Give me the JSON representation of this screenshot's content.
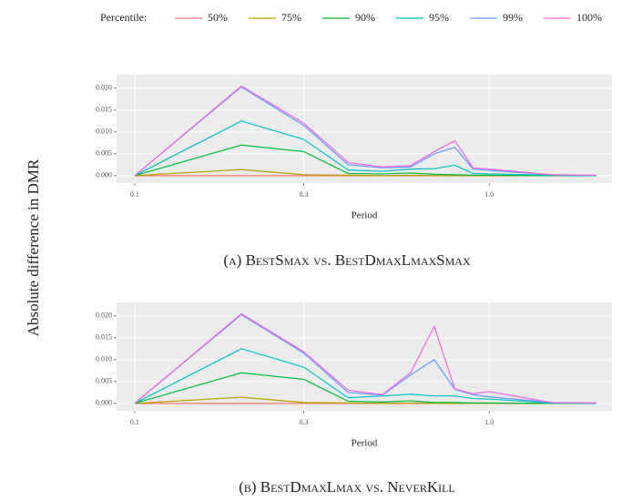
{
  "legend_title": "Percentile:",
  "y_label": "Absolute difference in DMR",
  "chart_data": [
    {
      "type": "line",
      "caption": "(a) BestSmax vs. BestDmaxLmaxSmax",
      "xlabel": "Period",
      "x": [
        0.1,
        0.2,
        0.3,
        0.4,
        0.5,
        0.6,
        0.7,
        0.8,
        0.9,
        1.0,
        1.5,
        2.0
      ],
      "xlog": true,
      "xlim": [
        0.0889,
        2.22
      ],
      "xticks": [
        0.1,
        0.3,
        {
          "value": 1,
          "label": "1.0"
        }
      ],
      "ylim": [
        -0.0017,
        0.0231
      ],
      "yticks": [
        {
          "value": 0,
          "label": "0.000"
        },
        0.005,
        {
          "value": 0.01,
          "label": "0.010"
        },
        0.015,
        {
          "value": 0.02,
          "label": "0.020"
        }
      ],
      "grid": true,
      "series": [
        {
          "name": "50%",
          "color": "#F8766D",
          "values": [
            0,
            0,
            0,
            0,
            0,
            0,
            0,
            0,
            0,
            0,
            0,
            0
          ]
        },
        {
          "name": "75%",
          "color": "#B79F00",
          "values": [
            0,
            0.0014,
            0.0002,
            0.0001,
            0,
            0.0001,
            0,
            0,
            0,
            0,
            0,
            0
          ]
        },
        {
          "name": "90%",
          "color": "#00BA38",
          "values": [
            0,
            0.007,
            0.0055,
            0.0005,
            0.0004,
            0.0006,
            0.0003,
            0.0002,
            0.0001,
            0.0001,
            0,
            0
          ]
        },
        {
          "name": "95%",
          "color": "#00BFC4",
          "values": [
            0,
            0.0125,
            0.0083,
            0.0013,
            0.001,
            0.0015,
            0.0016,
            0.0024,
            0.0005,
            0.0004,
            0.0001,
            0
          ]
        },
        {
          "name": "99%",
          "color": "#619CFF",
          "values": [
            0,
            0.0203,
            0.0115,
            0.0025,
            0.0018,
            0.002,
            0.005,
            0.0065,
            0.0015,
            0.0012,
            0.0002,
            0.0001
          ]
        },
        {
          "name": "100%",
          "color": "#F564E3",
          "values": [
            0,
            0.0205,
            0.012,
            0.003,
            0.002,
            0.0023,
            0.0055,
            0.008,
            0.0018,
            0.0015,
            0.0002,
            0.0001
          ]
        }
      ]
    },
    {
      "type": "line",
      "caption": "(b) BestDmaxLmax vs. NeverKill",
      "xlabel": "Period",
      "x": [
        0.1,
        0.2,
        0.3,
        0.4,
        0.5,
        0.6,
        0.7,
        0.8,
        0.9,
        1.0,
        1.5,
        2.0
      ],
      "xlog": true,
      "xlim": [
        0.0889,
        2.22
      ],
      "xticks": [
        0.1,
        0.3,
        {
          "value": 1,
          "label": "1.0"
        }
      ],
      "ylim": [
        -0.0017,
        0.0231
      ],
      "yticks": [
        {
          "value": 0,
          "label": "0.000"
        },
        0.005,
        {
          "value": 0.01,
          "label": "0.010"
        },
        0.015,
        {
          "value": 0.02,
          "label": "0.020"
        }
      ],
      "grid": true,
      "series": [
        {
          "name": "50%",
          "color": "#F8766D",
          "values": [
            0,
            0,
            0,
            0,
            0,
            0,
            0,
            0,
            0,
            0,
            0,
            0
          ]
        },
        {
          "name": "75%",
          "color": "#B79F00",
          "values": [
            0,
            0.0014,
            0.0002,
            0.0001,
            0,
            0.0001,
            0,
            0,
            0,
            0,
            0,
            0
          ]
        },
        {
          "name": "90%",
          "color": "#00BA38",
          "values": [
            0,
            0.007,
            0.0055,
            0.0005,
            0.0003,
            0.0006,
            0.0002,
            0.0002,
            0.0001,
            0.0001,
            0,
            0
          ]
        },
        {
          "name": "95%",
          "color": "#00BFC4",
          "values": [
            0,
            0.0125,
            0.0083,
            0.0013,
            0.0017,
            0.0021,
            0.0017,
            0.0017,
            0.0011,
            0.001,
            0.0001,
            0
          ]
        },
        {
          "name": "99%",
          "color": "#619CFF",
          "values": [
            0,
            0.0203,
            0.0115,
            0.0025,
            0.0019,
            0.0065,
            0.01,
            0.0032,
            0.002,
            0.0015,
            0.0002,
            0.0001
          ]
        },
        {
          "name": "100%",
          "color": "#F564E3",
          "values": [
            0,
            0.0205,
            0.0118,
            0.003,
            0.002,
            0.007,
            0.0176,
            0.0033,
            0.0022,
            0.0027,
            0.0002,
            0.0001
          ]
        }
      ]
    }
  ]
}
